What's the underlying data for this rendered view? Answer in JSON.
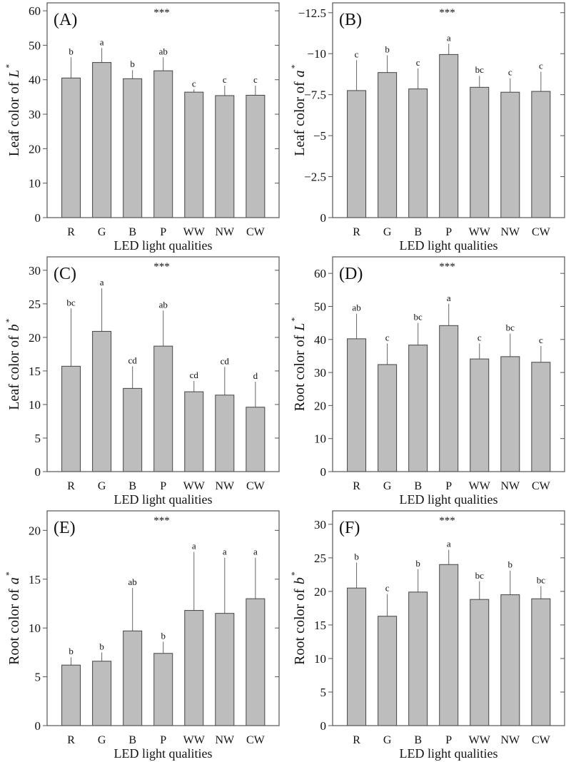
{
  "colors": {
    "bar_fill": "#bdbdbd",
    "bar_stroke": "#444444",
    "axis": "#555555"
  },
  "chart_data": [
    {
      "type": "bar",
      "panel": "(A)",
      "significance": "***",
      "categories": [
        "R",
        "G",
        "B",
        "P",
        "WW",
        "NW",
        "CW"
      ],
      "values": [
        40.5,
        45.0,
        40.3,
        42.6,
        36.4,
        35.4,
        35.5
      ],
      "error_upper": [
        46.5,
        49.2,
        42.8,
        46.5,
        37.2,
        38.3,
        38.3
      ],
      "letters": [
        "b",
        "a",
        "b",
        "ab",
        "c",
        "c",
        "c"
      ],
      "ylabel": "Leaf color of",
      "yvar": "L",
      "ysup": "*",
      "xlabel": "LED light qualities",
      "ylim": [
        0,
        62.3
      ],
      "yticks": [
        0,
        10,
        20,
        30,
        40,
        50,
        60
      ],
      "ytick_labels": [
        "0",
        "10",
        "20",
        "30",
        "40",
        "50",
        "60"
      ],
      "grid": false
    },
    {
      "type": "bar",
      "panel": "(B)",
      "significance": "***",
      "categories": [
        "R",
        "G",
        "B",
        "P",
        "WW",
        "NW",
        "CW"
      ],
      "values": [
        -7.75,
        -8.85,
        -7.85,
        -9.95,
        -7.95,
        -7.65,
        -7.7
      ],
      "error_upper": [
        -9.6,
        -9.9,
        -9.1,
        -10.6,
        -8.65,
        -8.5,
        -8.9
      ],
      "letters": [
        "c",
        "b",
        "c",
        "a",
        "bc",
        "c",
        "c"
      ],
      "ylabel": "Leaf color of",
      "yvar": "a",
      "ysup": "*",
      "xlabel": "LED light qualities",
      "ylim": [
        0,
        -13.1
      ],
      "yticks": [
        0,
        -2.5,
        -5,
        -7.5,
        -10,
        -12.5
      ],
      "ytick_labels": [
        "0",
        "−2.5",
        "−5",
        "−7.5",
        "−10",
        "−12.5"
      ],
      "grid": false
    },
    {
      "type": "bar",
      "panel": "(C)",
      "significance": "***",
      "categories": [
        "R",
        "G",
        "B",
        "P",
        "WW",
        "NW",
        "CW"
      ],
      "values": [
        15.7,
        20.9,
        12.4,
        18.7,
        11.9,
        11.4,
        9.6
      ],
      "error_upper": [
        24.3,
        27.3,
        15.7,
        24.0,
        13.5,
        15.6,
        13.4
      ],
      "letters": [
        "bc",
        "a",
        "cd",
        "ab",
        "cd",
        "cd",
        "d"
      ],
      "ylabel": "Leaf color of",
      "yvar": "b",
      "ysup": "*",
      "xlabel": "LED light qualities",
      "ylim": [
        0,
        32
      ],
      "yticks": [
        0,
        5,
        10,
        15,
        20,
        25,
        30
      ],
      "ytick_labels": [
        "0",
        "5",
        "10",
        "15",
        "20",
        "25",
        "30"
      ],
      "grid": false
    },
    {
      "type": "bar",
      "panel": "(D)",
      "significance": "***",
      "categories": [
        "R",
        "G",
        "B",
        "P",
        "WW",
        "NW",
        "CW"
      ],
      "values": [
        40.2,
        32.4,
        38.3,
        44.2,
        34.1,
        34.8,
        33.1
      ],
      "error_upper": [
        47.8,
        38.8,
        45.0,
        50.8,
        38.8,
        41.8,
        38.0
      ],
      "letters": [
        "ab",
        "c",
        "bc",
        "a",
        "c",
        "bc",
        "c"
      ],
      "ylabel": "Root color of",
      "yvar": "L",
      "ysup": "*",
      "xlabel": "LED light qualities",
      "ylim": [
        0,
        65
      ],
      "yticks": [
        0,
        10,
        20,
        30,
        40,
        50,
        60
      ],
      "ytick_labels": [
        "0",
        "10",
        "20",
        "30",
        "40",
        "50",
        "60"
      ],
      "grid": false
    },
    {
      "type": "bar",
      "panel": "(E)",
      "significance": "***",
      "categories": [
        "R",
        "G",
        "B",
        "P",
        "WW",
        "NW",
        "CW"
      ],
      "values": [
        6.2,
        6.6,
        9.7,
        7.4,
        11.8,
        11.5,
        13.0
      ],
      "error_upper": [
        7.0,
        7.5,
        14.1,
        8.6,
        17.8,
        17.2,
        17.2
      ],
      "letters": [
        "b",
        "b",
        "ab",
        "b",
        "a",
        "a",
        "a"
      ],
      "ylabel": "Root color of",
      "yvar": "a",
      "ysup": "*",
      "xlabel": "LED light qualities",
      "ylim": [
        0,
        22
      ],
      "yticks": [
        0,
        5,
        10,
        15,
        20
      ],
      "ytick_labels": [
        "0",
        "5",
        "10",
        "15",
        "20"
      ],
      "grid": false
    },
    {
      "type": "bar",
      "panel": "(F)",
      "significance": "***",
      "categories": [
        "R",
        "G",
        "B",
        "P",
        "WW",
        "NW",
        "CW"
      ],
      "values": [
        20.5,
        16.3,
        19.9,
        24.0,
        18.8,
        19.5,
        18.9
      ],
      "error_upper": [
        24.3,
        19.6,
        23.3,
        26.2,
        21.5,
        23.1,
        20.8
      ],
      "letters": [
        "b",
        "c",
        "b",
        "a",
        "bc",
        "b",
        "bc"
      ],
      "ylabel": "Root color of",
      "yvar": "b",
      "ysup": "*",
      "xlabel": "LED light qualities",
      "ylim": [
        0,
        32
      ],
      "yticks": [
        0,
        5,
        10,
        15,
        20,
        25,
        30
      ],
      "ytick_labels": [
        "0",
        "5",
        "10",
        "15",
        "20",
        "25",
        "30"
      ],
      "grid": false
    }
  ]
}
